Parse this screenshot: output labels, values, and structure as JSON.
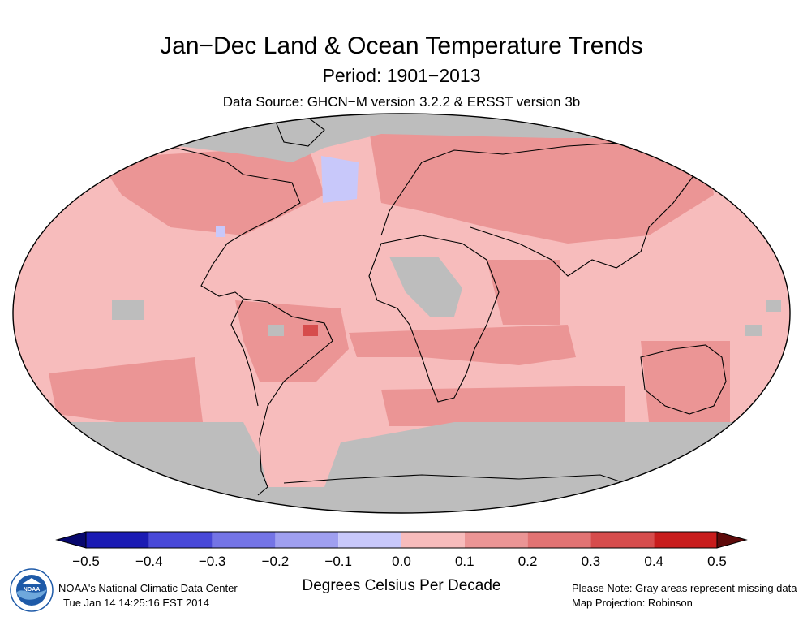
{
  "title": "Jan−Dec Land & Ocean Temperature Trends",
  "subtitle": "Period: 1901−2013",
  "data_source": "Data Source: GHCN−M version 3.2.2 & ERSST version 3b",
  "colorbar": {
    "tick_labels": [
      "−0.5",
      "−0.4",
      "−0.3",
      "−0.2",
      "−0.1",
      "0.0",
      "0.1",
      "0.2",
      "0.3",
      "0.4",
      "0.5"
    ],
    "bin_colors": [
      "#1b1bb3",
      "#4848d8",
      "#7474e6",
      "#9f9ff0",
      "#c8c8fa",
      "#f7bcbc",
      "#eb9595",
      "#e27373",
      "#d64c4c",
      "#c81c1c"
    ],
    "low_arrow_color": "#08086e",
    "high_arrow_color": "#5e0a0a",
    "units_label": "Degrees Celsius Per Decade"
  },
  "map": {
    "projection_note": "Map Projection: Robinson",
    "missing_note": "Please Note: Gray areas represent missing data",
    "missing_color": "#bdbdbd",
    "background_trend_color": "#f7bcbc",
    "logo_text": "NOAA"
  },
  "footer": {
    "org": "NOAA's National Climatic Data Center",
    "timestamp": "Tue Jan 14 14:25:16 EST 2014"
  }
}
